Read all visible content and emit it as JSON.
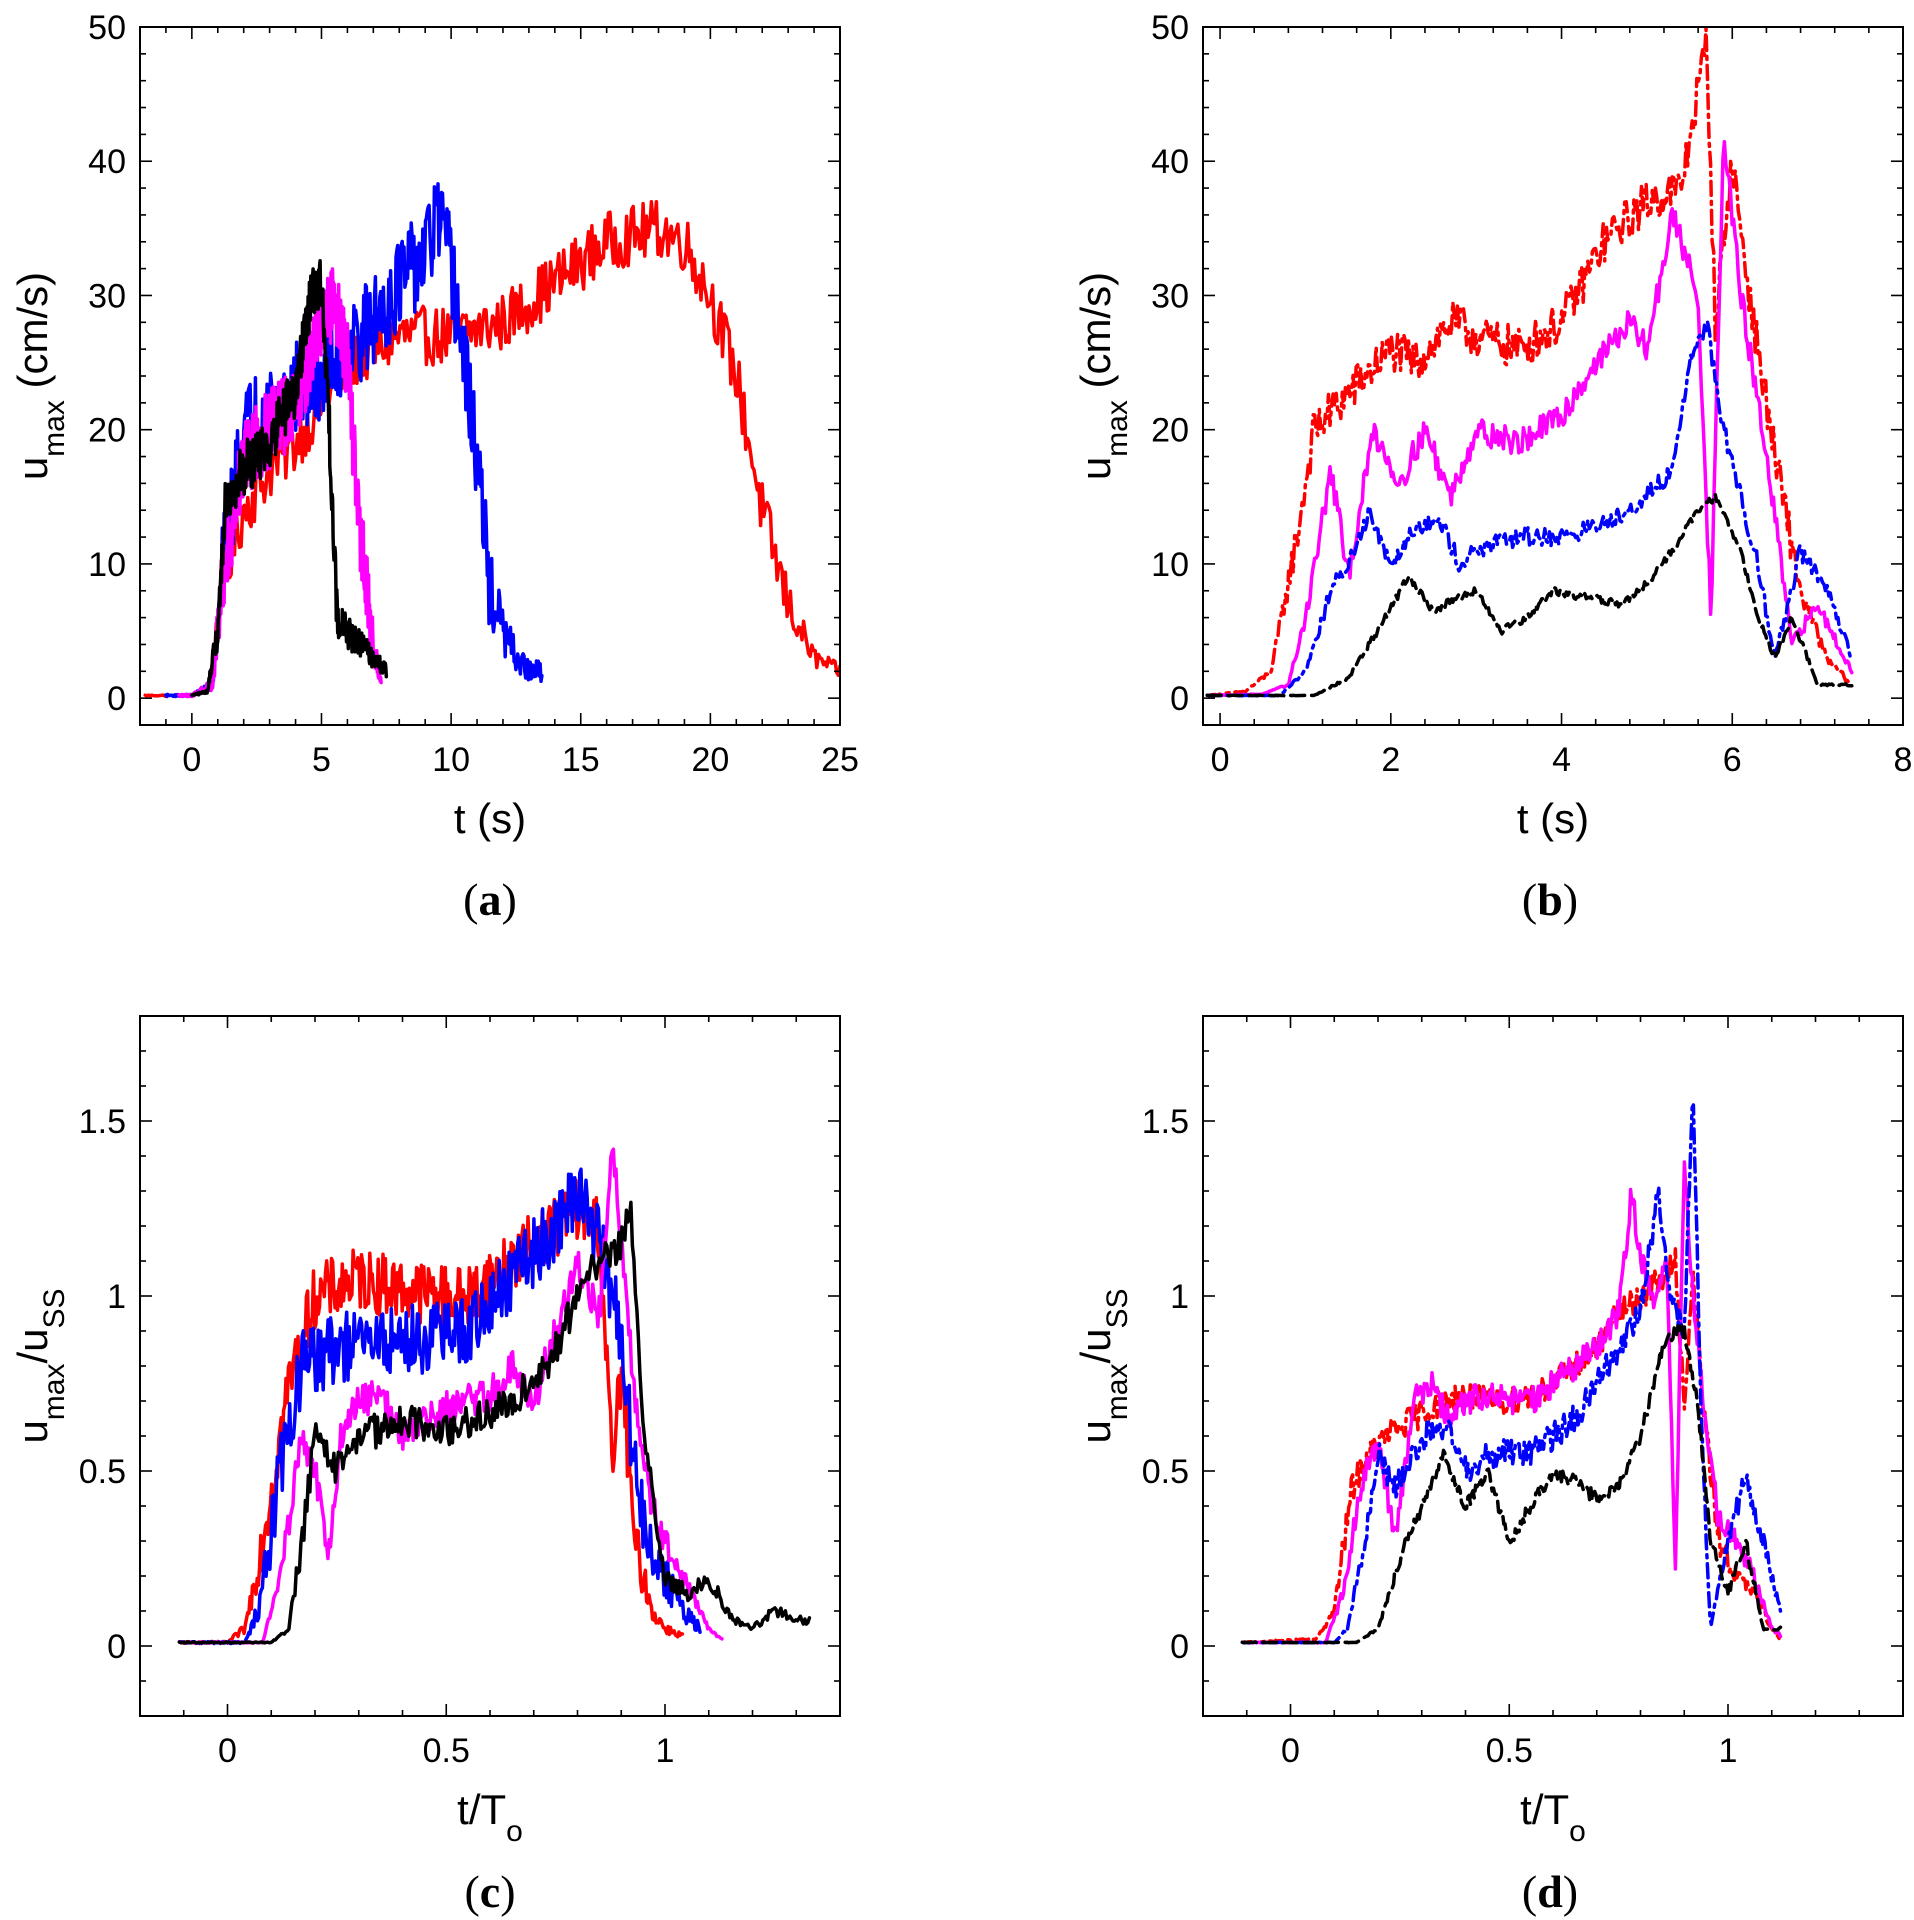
{
  "colors": {
    "red": "#ff0000",
    "magenta": "#ff00ff",
    "blue": "#0000ff",
    "black": "#000000"
  },
  "chart_data": [
    {
      "panel": "a",
      "type": "line",
      "caption": "(a)",
      "xlabel": "t (s)",
      "ylabel": {
        "base": "u",
        "sub": "max",
        "rest": " (cm/s)"
      },
      "xlim": [
        -2,
        25
      ],
      "ylim": [
        -2,
        50
      ],
      "xticks": [
        0,
        5,
        10,
        15,
        20,
        25
      ],
      "yticks": [
        0,
        10,
        20,
        30,
        40,
        50
      ],
      "xticklabels": [
        "0",
        "5",
        "10",
        "15",
        "20",
        "25"
      ],
      "yticklabels": [
        "0",
        "10",
        "20",
        "30",
        "40",
        "50"
      ],
      "grid": false,
      "series": [
        {
          "color": "red",
          "dash": "solid",
          "noise": 2.2,
          "x": [
            -1.8,
            0,
            0.7,
            1.1,
            2,
            3,
            4,
            5,
            6,
            8,
            10,
            12,
            14,
            16,
            18,
            19,
            20,
            21,
            22,
            23,
            24,
            25
          ],
          "y": [
            0.2,
            0.2,
            1,
            8,
            14,
            17,
            19,
            22,
            25,
            27,
            27,
            28,
            31,
            34,
            35,
            34,
            30,
            24,
            14,
            7,
            3,
            2
          ]
        },
        {
          "color": "blue",
          "dash": "solid",
          "noise": 3.5,
          "x": [
            -1,
            0,
            0.8,
            1.2,
            2,
            3,
            4,
            5,
            6,
            7,
            8,
            9,
            9.5,
            10,
            10.5,
            11,
            11.5,
            12,
            12.5,
            13,
            13.5
          ],
          "y": [
            0.2,
            0.2,
            1,
            10,
            20,
            22,
            23,
            24,
            26,
            28,
            31,
            33,
            36,
            32,
            25,
            18,
            8,
            5,
            3,
            2,
            2
          ]
        },
        {
          "color": "magenta",
          "dash": "solid",
          "noise": 3,
          "x": [
            -0.5,
            0,
            0.8,
            1.2,
            2,
            3,
            4,
            5,
            5.5,
            6,
            6.5,
            7,
            7.3
          ],
          "y": [
            0.2,
            0.2,
            1,
            9,
            18,
            20,
            22,
            28,
            30,
            25,
            12,
            4,
            1
          ]
        },
        {
          "color": "black",
          "dash": "solid",
          "noise": 2,
          "x": [
            0,
            0.6,
            1,
            1.3,
            2,
            3,
            4,
            4.6,
            5,
            5.3,
            5.6,
            6,
            6.5,
            7,
            7.5
          ],
          "y": [
            0.2,
            0.5,
            5,
            15,
            17,
            19,
            23,
            30,
            31,
            20,
            6,
            5,
            4,
            3,
            2
          ]
        }
      ]
    },
    {
      "panel": "b",
      "type": "line",
      "caption": "(b)",
      "xlabel": "t (s)",
      "ylabel": {
        "base": "u",
        "sub": "max",
        "rest": " (cm/s)"
      },
      "xlim": [
        -0.2,
        8
      ],
      "ylim": [
        -2,
        50
      ],
      "xticks": [
        0,
        2,
        4,
        6,
        8
      ],
      "yticks": [
        0,
        10,
        20,
        30,
        40,
        50
      ],
      "xticklabels": [
        "0",
        "2",
        "4",
        "6",
        "8"
      ],
      "yticklabels": [
        "0",
        "10",
        "20",
        "30",
        "40",
        "50"
      ],
      "grid": false,
      "series": [
        {
          "color": "red",
          "dash": "dashdot",
          "noise": 1.6,
          "x": [
            -0.15,
            0.3,
            0.6,
            0.9,
            1.1,
            1.4,
            1.7,
            2,
            2.3,
            2.7,
            3,
            3.5,
            4,
            4.5,
            5,
            5.4,
            5.7,
            5.8,
            6,
            6.2,
            6.5,
            6.8,
            7.1,
            7.4
          ],
          "y": [
            0.2,
            0.5,
            2,
            12,
            20,
            22,
            24,
            26,
            25,
            28,
            27,
            26,
            28,
            34,
            37,
            38,
            49,
            28,
            40,
            30,
            18,
            8,
            3,
            1
          ]
        },
        {
          "color": "magenta",
          "dash": "solid",
          "noise": 1,
          "x": [
            -0.15,
            0.5,
            0.8,
            1,
            1.3,
            1.5,
            1.8,
            2.1,
            2.4,
            2.7,
            3,
            3.5,
            4,
            4.4,
            4.8,
            5,
            5.3,
            5.6,
            5.75,
            5.9,
            6.1,
            6.4,
            6.7,
            7,
            7.4
          ],
          "y": [
            0.2,
            0.3,
            1,
            6,
            17,
            9,
            20,
            16,
            20,
            15,
            20,
            19,
            21,
            25,
            28,
            26,
            36,
            30,
            6,
            42,
            30,
            18,
            4,
            7,
            2
          ]
        },
        {
          "color": "blue",
          "dash": "dashdot",
          "noise": 0.7,
          "x": [
            -0.15,
            0.7,
            1,
            1.3,
            1.5,
            1.75,
            2,
            2.3,
            2.6,
            2.8,
            3,
            3.5,
            4,
            4.5,
            5,
            5.3,
            5.5,
            5.7,
            5.9,
            6.1,
            6.3,
            6.5,
            6.8,
            7.1,
            7.4
          ],
          "y": [
            0.2,
            0.2,
            2,
            8,
            10,
            14,
            10,
            13,
            13,
            10,
            11,
            12,
            12,
            13,
            15,
            17,
            25,
            28,
            20,
            15,
            10,
            3,
            11,
            8,
            3
          ]
        },
        {
          "color": "black",
          "dash": "dashed",
          "noise": 0.3,
          "x": [
            -0.15,
            1.1,
            1.5,
            1.8,
            2.2,
            2.5,
            2.8,
            3,
            3.3,
            3.6,
            3.9,
            4.3,
            4.7,
            5,
            5.3,
            5.6,
            5.8,
            6.1,
            6.3,
            6.5,
            6.7,
            7,
            7.4
          ],
          "y": [
            0.2,
            0.2,
            1.5,
            4.5,
            9,
            6.5,
            7.5,
            8,
            5,
            6,
            8,
            7.5,
            7,
            8.5,
            11,
            14,
            15,
            11,
            6,
            3,
            6,
            1,
            1
          ]
        }
      ]
    },
    {
      "panel": "c",
      "type": "line",
      "caption": "(c)",
      "xlabel": {
        "base": "t/T",
        "sub": "o"
      },
      "ylabel": {
        "base": "u",
        "sub": "max",
        "mid": "/u",
        "sub2": "SS"
      },
      "xlim": [
        -0.2,
        1.4
      ],
      "ylim": [
        -0.2,
        1.8
      ],
      "xticks": [
        0,
        0.5,
        1
      ],
      "yticks": [
        0,
        0.5,
        1,
        1.5
      ],
      "xticklabels": [
        "0",
        "0.5",
        "1"
      ],
      "yticklabels": [
        "0",
        "0.5",
        "1",
        "1.5"
      ],
      "grid": false,
      "series": [
        {
          "color": "red",
          "dash": "solid",
          "noise": 0.09,
          "x": [
            -0.11,
            0,
            0.04,
            0.08,
            0.14,
            0.2,
            0.3,
            0.4,
            0.5,
            0.55,
            0.6,
            0.7,
            0.8,
            0.85,
            0.88,
            0.9,
            0.93,
            0.97,
            1,
            1.04
          ],
          "y": [
            0.01,
            0.01,
            0.05,
            0.3,
            0.75,
            1,
            1.05,
            1.02,
            1,
            1,
            1.05,
            1.15,
            1.25,
            1.2,
            0.5,
            0.8,
            0.3,
            0.1,
            0.05,
            0.03
          ]
        },
        {
          "color": "blue",
          "dash": "solid",
          "noise": 0.1,
          "x": [
            -0.11,
            0.04,
            0.07,
            0.12,
            0.17,
            0.25,
            0.35,
            0.45,
            0.55,
            0.65,
            0.75,
            0.8,
            0.85,
            0.9,
            0.93,
            0.96,
            1,
            1.04,
            1.08
          ],
          "y": [
            0.01,
            0.01,
            0.1,
            0.5,
            0.8,
            0.85,
            0.87,
            0.88,
            0.9,
            1.05,
            1.2,
            1.3,
            1.15,
            0.9,
            0.5,
            0.3,
            0.2,
            0.1,
            0.05
          ]
        },
        {
          "color": "magenta",
          "dash": "solid",
          "noise": 0.05,
          "x": [
            -0.11,
            0.08,
            0.12,
            0.17,
            0.2,
            0.23,
            0.26,
            0.3,
            0.35,
            0.4,
            0.5,
            0.6,
            0.65,
            0.7,
            0.75,
            0.8,
            0.85,
            0.88,
            0.91,
            0.94,
            0.98,
            1.02,
            1.06,
            1.1,
            1.13
          ],
          "y": [
            0.01,
            0.01,
            0.2,
            0.6,
            0.5,
            0.25,
            0.6,
            0.7,
            0.72,
            0.6,
            0.68,
            0.72,
            0.8,
            0.7,
            0.9,
            1.1,
            0.95,
            1.45,
            1.0,
            0.6,
            0.35,
            0.25,
            0.15,
            0.05,
            0.02
          ]
        },
        {
          "color": "black",
          "dash": "solid",
          "noise": 0.05,
          "x": [
            -0.11,
            0.1,
            0.14,
            0.17,
            0.2,
            0.25,
            0.3,
            0.35,
            0.4,
            0.5,
            0.6,
            0.7,
            0.75,
            0.8,
            0.85,
            0.9,
            0.92,
            0.95,
            1,
            1.05,
            1.1,
            1.15,
            1.2,
            1.25,
            1.3,
            1.33
          ],
          "y": [
            0.01,
            0.01,
            0.05,
            0.3,
            0.6,
            0.5,
            0.6,
            0.62,
            0.65,
            0.62,
            0.66,
            0.75,
            0.85,
            1.0,
            1.1,
            1.15,
            1.28,
            0.6,
            0.2,
            0.15,
            0.2,
            0.08,
            0.05,
            0.1,
            0.08,
            0.07
          ]
        }
      ]
    },
    {
      "panel": "d",
      "type": "line",
      "caption": "(d)",
      "xlabel": {
        "base": "t/T",
        "sub": "o"
      },
      "ylabel": {
        "base": "u",
        "sub": "max",
        "mid": "/u",
        "sub2": "SS"
      },
      "xlim": [
        -0.2,
        1.4
      ],
      "ylim": [
        -0.2,
        1.8
      ],
      "xticks": [
        0,
        0.5,
        1
      ],
      "yticks": [
        0,
        0.5,
        1,
        1.5
      ],
      "xticklabels": [
        "0",
        "0.5",
        "1"
      ],
      "yticklabels": [
        "0",
        "0.5",
        "1",
        "1.5"
      ],
      "grid": false,
      "series": [
        {
          "color": "red",
          "dash": "dashdot",
          "noise": 0.04,
          "x": [
            -0.11,
            0.06,
            0.1,
            0.14,
            0.18,
            0.22,
            0.28,
            0.35,
            0.4,
            0.45,
            0.5,
            0.55,
            0.6,
            0.65,
            0.7,
            0.75,
            0.8,
            0.85,
            0.88,
            0.9,
            0.92,
            0.95,
            0.98,
            1.02,
            1.06,
            1.1,
            1.12
          ],
          "y": [
            0.01,
            0.02,
            0.1,
            0.45,
            0.55,
            0.6,
            0.65,
            0.7,
            0.72,
            0.7,
            0.7,
            0.72,
            0.75,
            0.8,
            0.85,
            0.95,
            1.0,
            1.05,
            1.1,
            0.7,
            1.05,
            0.6,
            0.3,
            0.2,
            0.15,
            0.05,
            0.02
          ]
        },
        {
          "color": "magenta",
          "dash": "solid",
          "noise": 0.04,
          "x": [
            -0.11,
            0.08,
            0.12,
            0.16,
            0.2,
            0.24,
            0.28,
            0.32,
            0.36,
            0.4,
            0.45,
            0.5,
            0.55,
            0.6,
            0.65,
            0.7,
            0.75,
            0.78,
            0.8,
            0.83,
            0.86,
            0.88,
            0.9,
            0.92,
            0.95,
            0.98,
            1.02,
            1.06,
            1.1,
            1.12
          ],
          "y": [
            0.01,
            0.01,
            0.15,
            0.45,
            0.6,
            0.3,
            0.7,
            0.75,
            0.65,
            0.7,
            0.72,
            0.7,
            0.7,
            0.75,
            0.8,
            0.85,
            0.95,
            1.3,
            1.1,
            1.0,
            1.1,
            0.2,
            1.4,
            1.0,
            0.6,
            0.35,
            0.3,
            0.2,
            0.05,
            0.03
          ]
        },
        {
          "color": "blue",
          "dash": "dashdot",
          "noise": 0.04,
          "x": [
            -0.11,
            0.1,
            0.13,
            0.17,
            0.2,
            0.24,
            0.28,
            0.32,
            0.36,
            0.4,
            0.45,
            0.5,
            0.55,
            0.6,
            0.65,
            0.7,
            0.75,
            0.8,
            0.84,
            0.87,
            0.9,
            0.92,
            0.94,
            0.96,
            1.0,
            1.04,
            1.08,
            1.12
          ],
          "y": [
            0.01,
            0.01,
            0.05,
            0.3,
            0.55,
            0.45,
            0.55,
            0.62,
            0.62,
            0.5,
            0.55,
            0.55,
            0.55,
            0.6,
            0.65,
            0.75,
            0.85,
            0.95,
            1.3,
            1.0,
            0.9,
            1.6,
            0.6,
            0.05,
            0.3,
            0.5,
            0.3,
            0.1
          ]
        },
        {
          "color": "black",
          "dash": "dashed",
          "noise": 0.02,
          "x": [
            -0.11,
            0.15,
            0.2,
            0.25,
            0.3,
            0.35,
            0.4,
            0.45,
            0.5,
            0.55,
            0.6,
            0.65,
            0.7,
            0.75,
            0.8,
            0.85,
            0.88,
            0.9,
            0.93,
            0.96,
            1.0,
            1.04,
            1.08,
            1.12
          ],
          "y": [
            0.01,
            0.01,
            0.05,
            0.25,
            0.4,
            0.55,
            0.4,
            0.5,
            0.3,
            0.4,
            0.5,
            0.47,
            0.42,
            0.45,
            0.6,
            0.85,
            0.9,
            0.9,
            0.7,
            0.3,
            0.15,
            0.3,
            0.05,
            0.05
          ]
        }
      ]
    }
  ]
}
